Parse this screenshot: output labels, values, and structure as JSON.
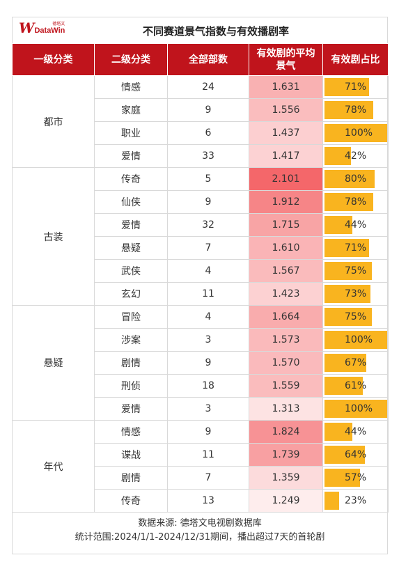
{
  "header": {
    "logo_mark": "W",
    "logo_cn": "德塔文",
    "logo_en": "DataWin",
    "title": "不同赛道景气指数与有效播剧率"
  },
  "columns": [
    "一级分类",
    "二级分类",
    "全部部数",
    "有效剧的平均景气",
    "有效剧占比"
  ],
  "score_scale": {
    "min": 1.249,
    "max": 2.101,
    "low_color": "#ffffff",
    "high_color": "#f4676a"
  },
  "bar_color": "#f9b41f",
  "groups": [
    {
      "name": "都市",
      "rows": [
        {
          "cat2": "情感",
          "count": "24",
          "score": "1.631",
          "ratio": "71%"
        },
        {
          "cat2": "家庭",
          "count": "9",
          "score": "1.556",
          "ratio": "78%"
        },
        {
          "cat2": "职业",
          "count": "6",
          "score": "1.437",
          "ratio": "100%"
        },
        {
          "cat2": "爱情",
          "count": "33",
          "score": "1.417",
          "ratio": "42%"
        }
      ]
    },
    {
      "name": "古装",
      "rows": [
        {
          "cat2": "传奇",
          "count": "5",
          "score": "2.101",
          "ratio": "80%"
        },
        {
          "cat2": "仙侠",
          "count": "9",
          "score": "1.912",
          "ratio": "78%"
        },
        {
          "cat2": "爱情",
          "count": "32",
          "score": "1.715",
          "ratio": "44%"
        },
        {
          "cat2": "悬疑",
          "count": "7",
          "score": "1.610",
          "ratio": "71%"
        },
        {
          "cat2": "武侠",
          "count": "4",
          "score": "1.567",
          "ratio": "75%"
        },
        {
          "cat2": "玄幻",
          "count": "11",
          "score": "1.423",
          "ratio": "73%"
        }
      ]
    },
    {
      "name": "悬疑",
      "rows": [
        {
          "cat2": "冒险",
          "count": "4",
          "score": "1.664",
          "ratio": "75%"
        },
        {
          "cat2": "涉案",
          "count": "3",
          "score": "1.573",
          "ratio": "100%"
        },
        {
          "cat2": "剧情",
          "count": "9",
          "score": "1.570",
          "ratio": "67%"
        },
        {
          "cat2": "刑侦",
          "count": "18",
          "score": "1.559",
          "ratio": "61%"
        },
        {
          "cat2": "爱情",
          "count": "3",
          "score": "1.313",
          "ratio": "100%"
        }
      ]
    },
    {
      "name": "年代",
      "rows": [
        {
          "cat2": "情感",
          "count": "9",
          "score": "1.824",
          "ratio": "44%"
        },
        {
          "cat2": "谍战",
          "count": "11",
          "score": "1.739",
          "ratio": "64%"
        },
        {
          "cat2": "剧情",
          "count": "7",
          "score": "1.359",
          "ratio": "57%"
        },
        {
          "cat2": "传奇",
          "count": "13",
          "score": "1.249",
          "ratio": "23%"
        }
      ]
    }
  ],
  "footer": {
    "source": "数据来源: 德塔文电视剧数据库",
    "scope": "统计范围:2024/1/1-2024/12/31期间，播出超过7天的首轮剧"
  }
}
